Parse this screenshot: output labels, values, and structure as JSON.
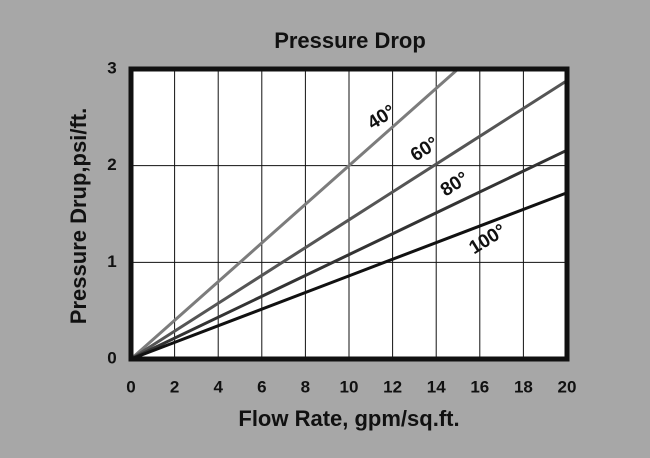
{
  "chart_data": {
    "type": "line",
    "title": "Pressure Drop",
    "x_label": "Flow Rate, gpm/sq.ft.",
    "y_label": "Pressure Drup,psi/ft.",
    "x": [
      0,
      5,
      10,
      15,
      20
    ],
    "series": [
      {
        "name": "40°",
        "color": "#7c7c7c",
        "values": [
          0,
          1,
          2,
          3,
          null
        ]
      },
      {
        "name": "60°",
        "color": "#555555",
        "values": [
          0,
          0.72,
          1.44,
          2.16,
          2.88
        ]
      },
      {
        "name": "80°",
        "color": "#333333",
        "values": [
          0,
          0.54,
          1.08,
          1.62,
          2.16
        ]
      },
      {
        "name": "100°",
        "color": "#111111",
        "values": [
          0,
          0.43,
          0.86,
          1.29,
          1.72
        ]
      }
    ],
    "xlim": [
      0,
      20
    ],
    "xticks": [
      0,
      2,
      4,
      6,
      8,
      10,
      12,
      14,
      16,
      18,
      20
    ],
    "ylim": [
      0,
      3
    ],
    "yticks": [
      0,
      1,
      2,
      3
    ],
    "grid": true
  }
}
